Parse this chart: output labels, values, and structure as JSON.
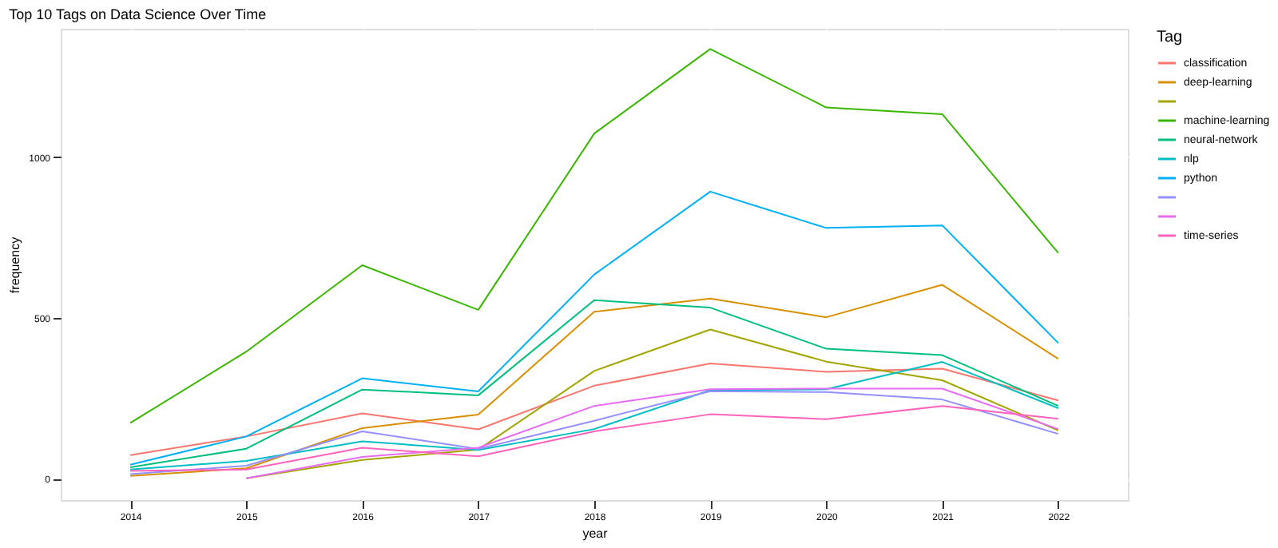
{
  "chart_data": {
    "type": "line",
    "title": "Top 10 Tags on Data Science Over Time",
    "xlabel": "year",
    "ylabel": "frequency",
    "legend_title": "Tag",
    "x": [
      2014,
      2015,
      2016,
      2017,
      2018,
      2019,
      2020,
      2021,
      2022
    ],
    "xlim": [
      2013.4,
      2022.6
    ],
    "xticks": [
      2014,
      2015,
      2016,
      2017,
      2018,
      2019,
      2020,
      2021,
      2022
    ],
    "ylim": [
      -67,
      1400
    ],
    "yticks": [
      0,
      500,
      1000
    ],
    "grid": true,
    "legend": "right",
    "marker": "none",
    "line_style": "solid",
    "series": [
      {
        "name": "classification",
        "color": "#f8766d",
        "values": [
          73,
          131,
          203,
          153,
          289,
          358,
          332,
          342,
          243
        ]
      },
      {
        "name": "deep-learning",
        "color": "#d89000",
        "values": [
          8,
          32,
          157,
          199,
          519,
          560,
          502,
          603,
          373
        ]
      },
      {
        "color": "#a3a500",
        "values": [
          null,
          1,
          58,
          90,
          335,
          464,
          364,
          306,
          150
        ]
      },
      {
        "name": "machine-learning",
        "color": "#39b600",
        "values": [
          173,
          395,
          664,
          525,
          1074,
          1337,
          1155,
          1134,
          702
        ]
      },
      {
        "name": "neural-network",
        "color": "#00bf7d",
        "values": [
          35,
          93,
          277,
          259,
          555,
          532,
          404,
          384,
          226
        ]
      },
      {
        "name": "nlp",
        "color": "#00bfc4",
        "values": [
          28,
          55,
          116,
          89,
          154,
          275,
          278,
          363,
          219
        ]
      },
      {
        "name": "python",
        "color": "#00b0f6",
        "values": [
          43,
          131,
          312,
          271,
          635,
          893,
          780,
          788,
          422
        ]
      },
      {
        "color": "#9590ff",
        "values": [
          14,
          40,
          147,
          92,
          180,
          272,
          269,
          246,
          139
        ]
      },
      {
        "color": "#e76bf3",
        "values": [
          null,
          1,
          67,
          96,
          226,
          278,
          280,
          280,
          154
        ]
      },
      {
        "name": "time-series",
        "color": "#ff62bc",
        "values": [
          24,
          28,
          96,
          69,
          147,
          200,
          185,
          226,
          186
        ]
      }
    ]
  }
}
